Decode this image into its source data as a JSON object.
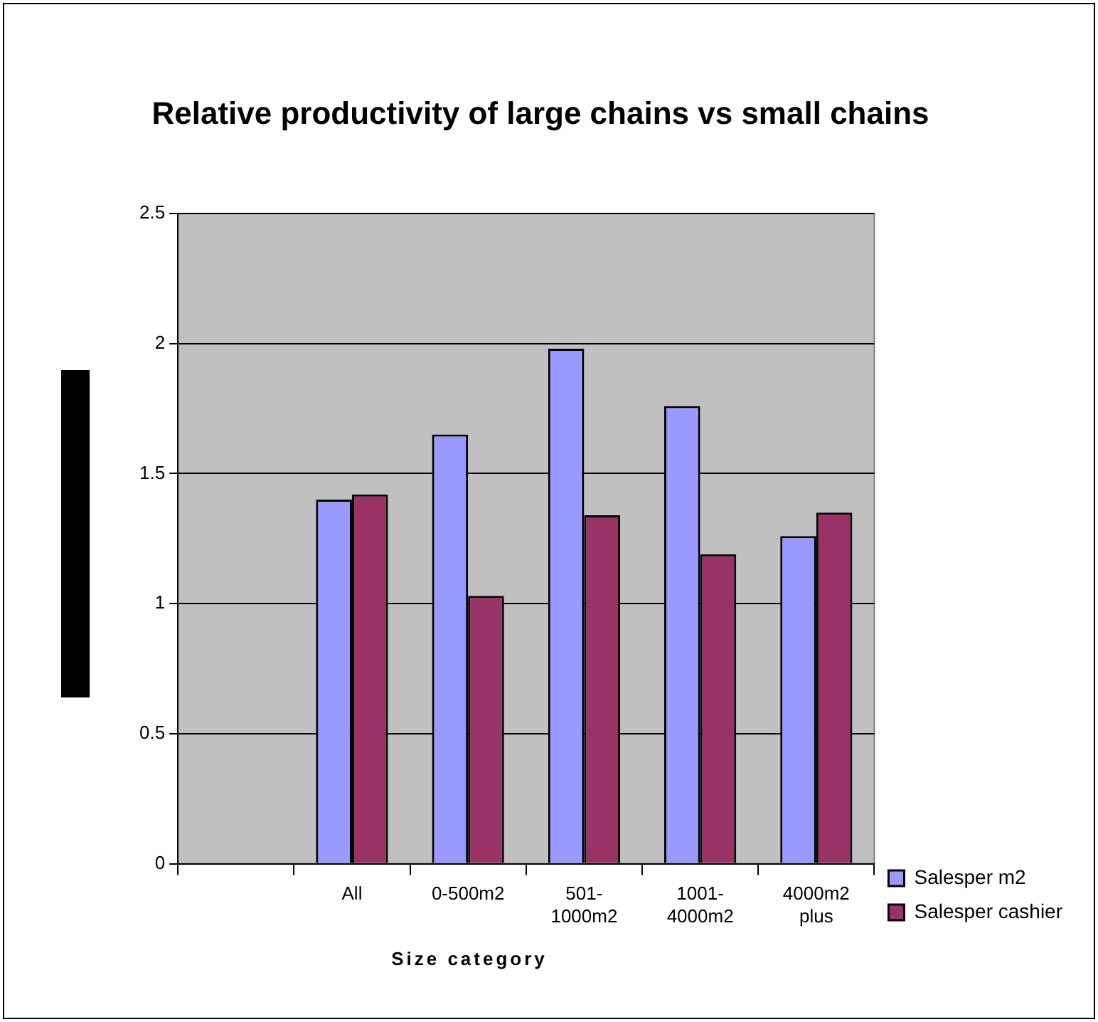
{
  "chart_data": {
    "type": "bar",
    "title": "Relative productivity of large chains vs small chains",
    "xlabel": "Size category",
    "categories": [
      null,
      "All",
      "0-500m2",
      "501-1000m2",
      "1001-4000m2",
      "4000m2 plus"
    ],
    "series": [
      {
        "name": "Salesper m2",
        "color": "#9999ff",
        "values": [
          null,
          1.4,
          1.65,
          1.98,
          1.76,
          1.26
        ]
      },
      {
        "name": "Salesper cashier",
        "color": "#993366",
        "values": [
          null,
          1.42,
          1.03,
          1.34,
          1.19,
          1.35
        ]
      }
    ],
    "ylim": [
      0,
      2.5
    ],
    "yticks": [
      0,
      0.5,
      1,
      1.5,
      2,
      2.5
    ],
    "grid": "y",
    "legend": "right"
  }
}
